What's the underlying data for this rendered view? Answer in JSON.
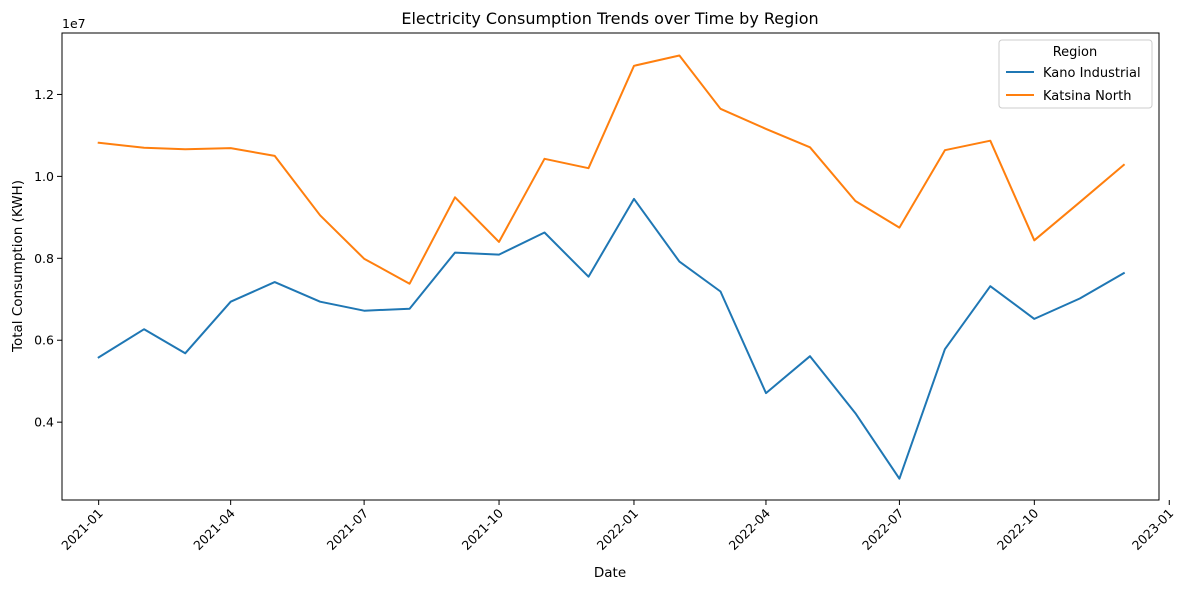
{
  "chart_data": {
    "type": "line",
    "title": "Electricity Consumption Trends over Time by Region",
    "xlabel": "Date",
    "ylabel": "Total Consumption (KWH)",
    "y_offset_text": "1e7",
    "x_ticks": [
      "2021-01",
      "2021-04",
      "2021-07",
      "2021-10",
      "2022-01",
      "2022-04",
      "2022-07",
      "2022-10",
      "2023-01"
    ],
    "y_ticks": [
      0.4,
      0.6,
      0.8,
      1.0,
      1.2
    ],
    "y_tick_labels": [
      "0.4",
      "0.6",
      "0.8",
      "1.0",
      "1.2"
    ],
    "x_range": [
      "2020-12-07",
      "2022-12-25"
    ],
    "ylim": [
      2.1,
      13.5
    ],
    "y_unit_multiplier": 10000000,
    "x": [
      "2021-01-01",
      "2021-02-01",
      "2021-03-01",
      "2021-04-01",
      "2021-05-01",
      "2021-06-01",
      "2021-07-01",
      "2021-08-01",
      "2021-09-01",
      "2021-10-01",
      "2021-11-01",
      "2021-12-01",
      "2022-01-01",
      "2022-02-01",
      "2022-03-01",
      "2022-04-01",
      "2022-05-01",
      "2022-06-01",
      "2022-07-01",
      "2022-08-01",
      "2022-09-01",
      "2022-10-01",
      "2022-11-01",
      "2022-12-01"
    ],
    "series": [
      {
        "name": "Kano Industrial",
        "color": "#1f77b4",
        "values": [
          5.58,
          6.27,
          5.68,
          6.94,
          7.42,
          6.94,
          6.72,
          6.77,
          8.14,
          8.09,
          8.63,
          7.55,
          9.45,
          7.92,
          7.19,
          4.71,
          5.61,
          4.22,
          2.62,
          5.78,
          7.32,
          6.52,
          7.02,
          7.64
        ]
      },
      {
        "name": "Katsina North",
        "color": "#ff7f0e",
        "values": [
          10.82,
          10.7,
          10.66,
          10.69,
          10.5,
          9.05,
          7.99,
          7.38,
          9.49,
          8.4,
          10.43,
          10.2,
          12.7,
          12.95,
          11.65,
          11.16,
          10.71,
          9.4,
          8.75,
          10.64,
          10.87,
          8.44,
          9.37,
          10.28
        ]
      }
    ],
    "legend": {
      "title": "Region",
      "placement": "top-right"
    },
    "grid": false
  }
}
